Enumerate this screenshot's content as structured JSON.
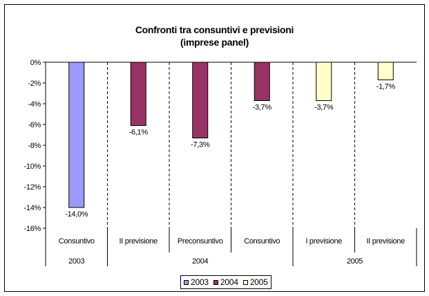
{
  "chart_data": {
    "type": "bar",
    "title": "Confronti tra consuntivi e previsioni",
    "subtitle": "(imprese panel)",
    "ylim": [
      -16,
      0
    ],
    "y_ticks": [
      0,
      -2,
      -4,
      -6,
      -8,
      -10,
      -12,
      -14,
      -16
    ],
    "y_tick_labels": [
      "0%",
      "-2%",
      "-4%",
      "-6%",
      "-8%",
      "-10%",
      "-12%",
      "-14%",
      "-16%"
    ],
    "categories": [
      "Consuntivo",
      "II previsione",
      "Preconsuntivo",
      "Consuntivo",
      "I previsione",
      "II previsione"
    ],
    "category_groups": [
      {
        "label": "2003",
        "span": 1
      },
      {
        "label": "2004",
        "span": 3
      },
      {
        "label": "2005",
        "span": 2
      }
    ],
    "values": [
      -14.0,
      -6.1,
      -7.3,
      -3.7,
      -3.7,
      -1.7
    ],
    "value_labels": [
      "-14,0%",
      "-6,1%",
      "-7,3%",
      "-3,7%",
      "-3,7%",
      "-1,7%"
    ],
    "bar_series": [
      "2003",
      "2004",
      "2004",
      "2004",
      "2005",
      "2005"
    ],
    "series": [
      {
        "name": "2003",
        "color": "#9999FF"
      },
      {
        "name": "2004",
        "color": "#993366"
      },
      {
        "name": "2005",
        "color": "#FFFFCC"
      }
    ],
    "grid": "dashed vertical separators",
    "legend_position": "bottom"
  }
}
